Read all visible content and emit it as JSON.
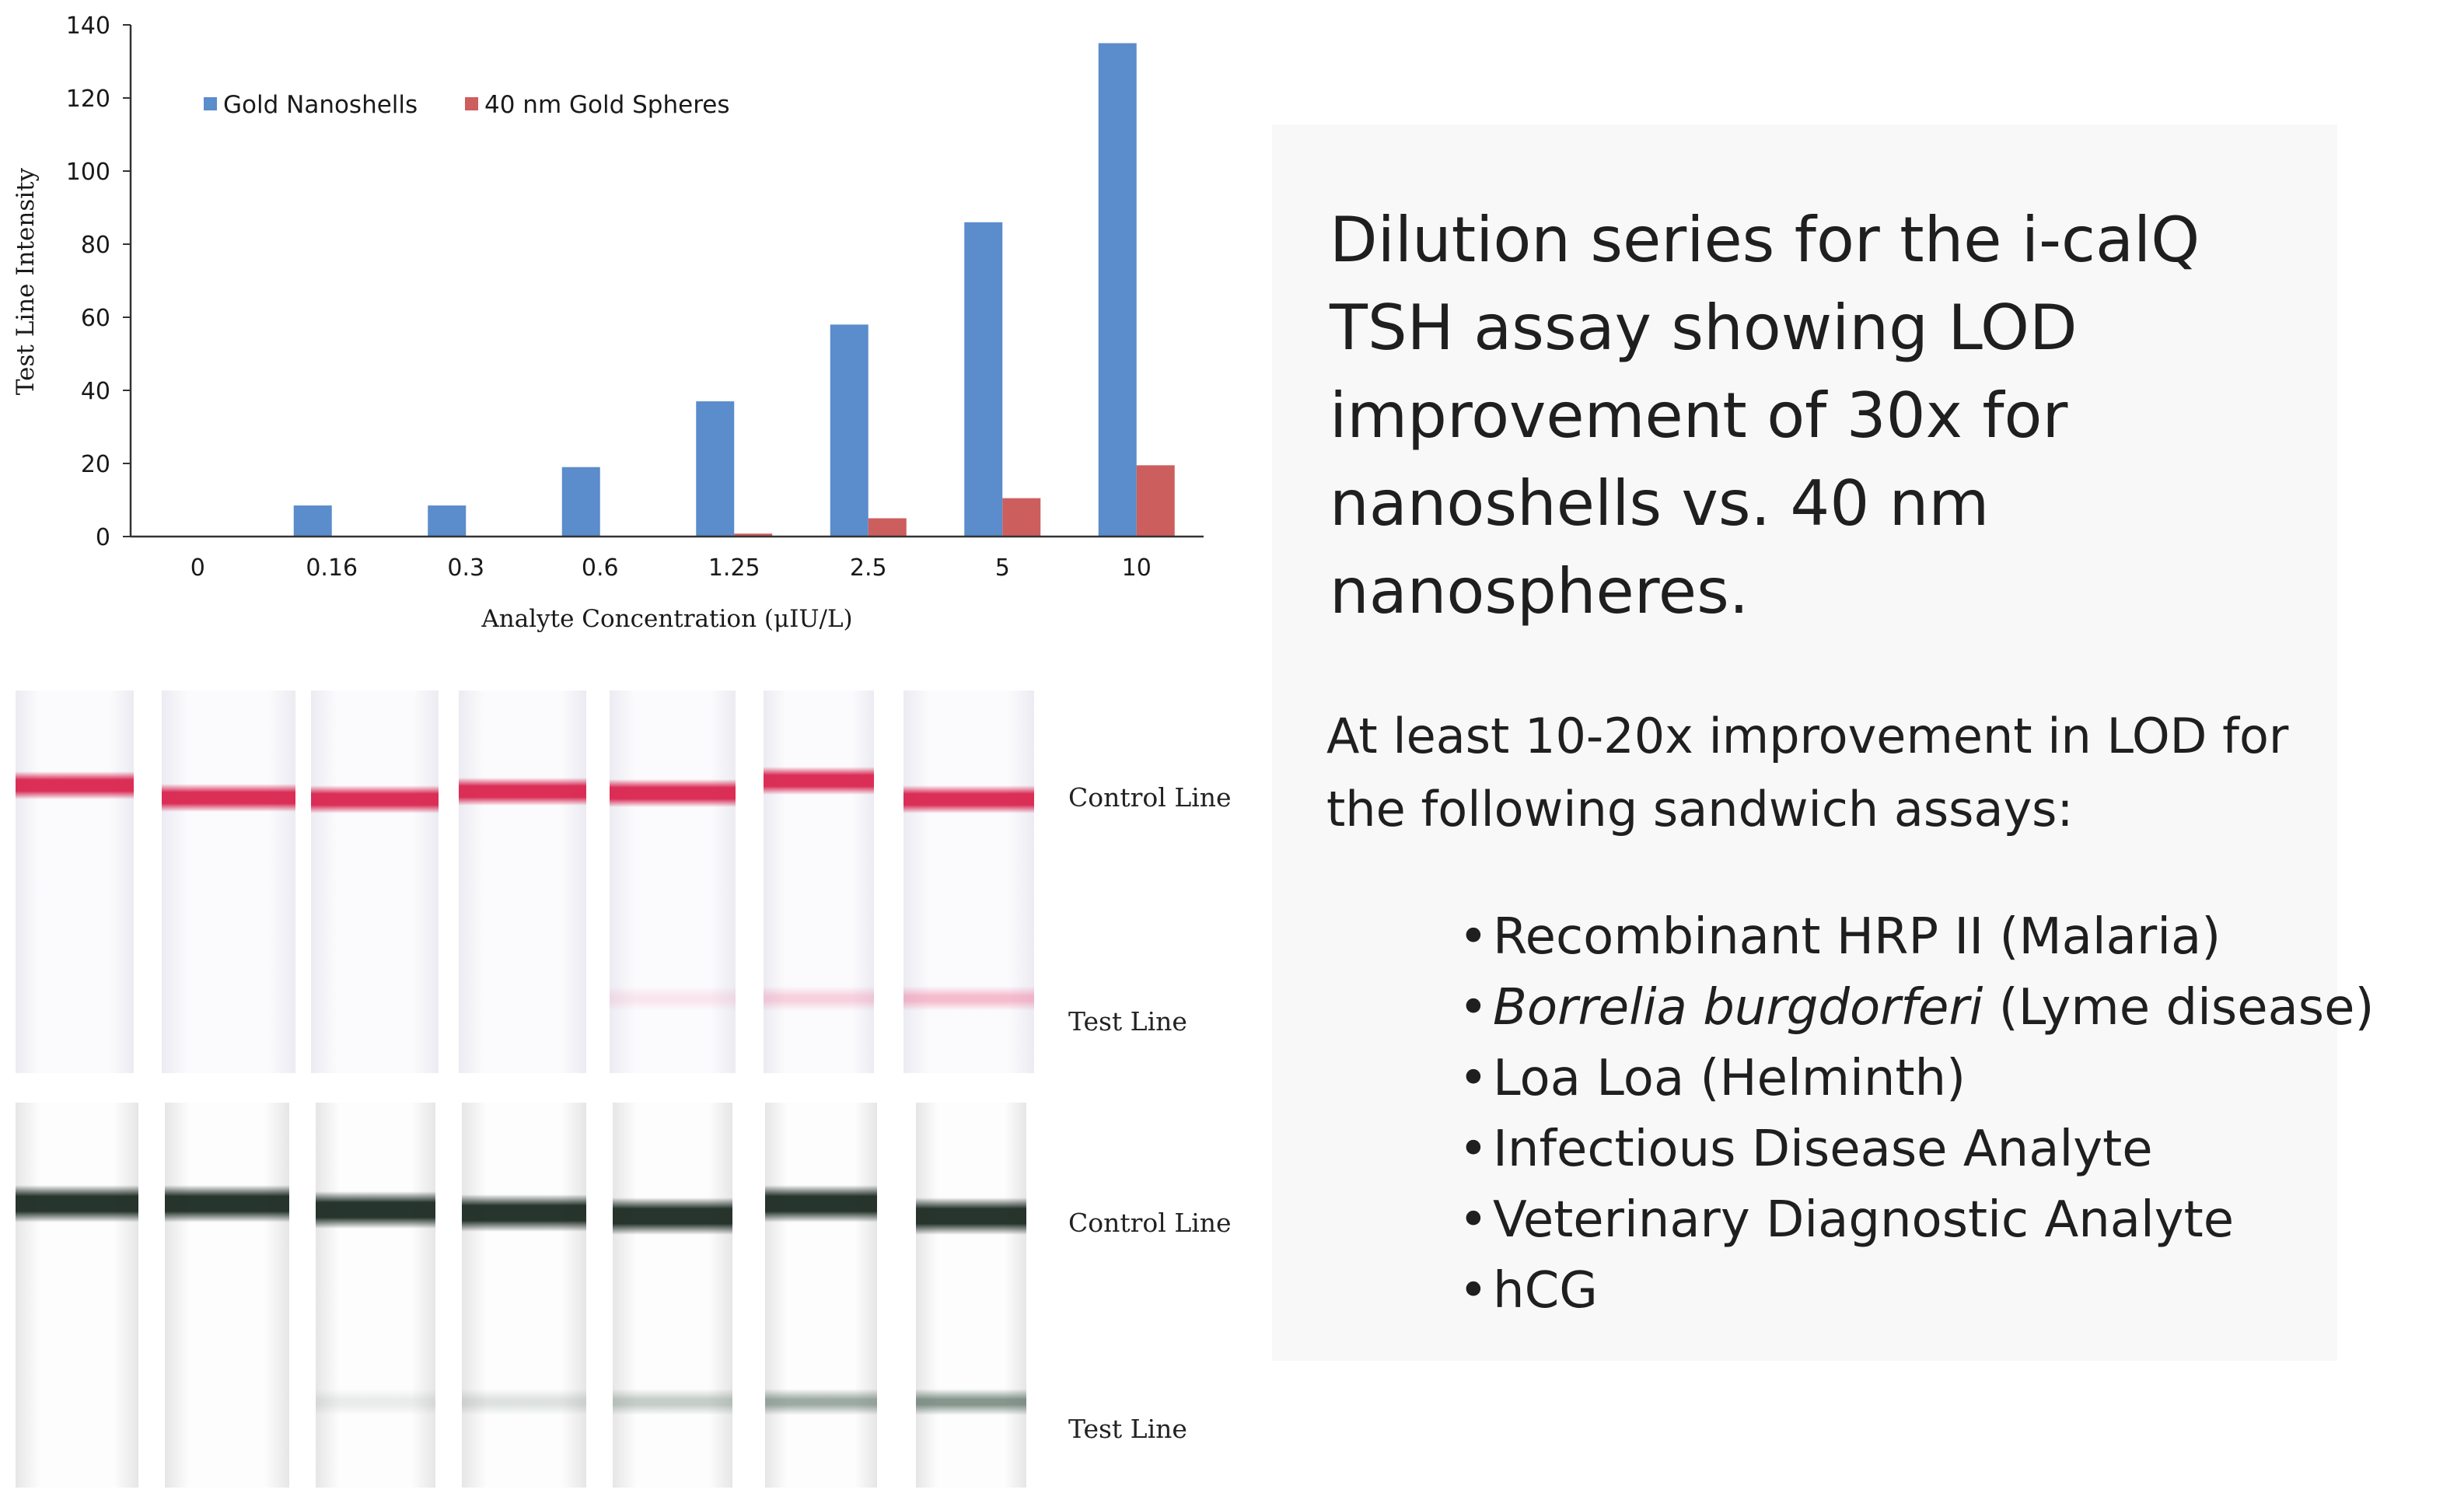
{
  "chart_data": {
    "type": "bar",
    "categories": [
      "0",
      "0.16",
      "0.3",
      "0.6",
      "1.25",
      "2.5",
      "5",
      "10"
    ],
    "series": [
      {
        "name": "Gold Nanoshells",
        "values": [
          0,
          8.5,
          8.5,
          19,
          37,
          58,
          86,
          135
        ],
        "color": "#5b8ccb"
      },
      {
        "name": "40 nm Gold Spheres",
        "values": [
          0,
          0,
          0,
          0,
          0.8,
          5,
          10.5,
          19.5
        ],
        "color": "#cd5e5e"
      }
    ],
    "title": "",
    "xlabel": "Analyte Concentration (μIU/L)",
    "ylabel": "Test Line Intensity",
    "ylim": [
      0,
      140
    ],
    "yticks": [
      0,
      20,
      40,
      60,
      80,
      100,
      120,
      140
    ],
    "grid": false,
    "legend": "top-left"
  },
  "strips": {
    "red_row": {
      "control_label": "Control Line",
      "test_label": "Test Line",
      "control_color": "#d9244e",
      "test_color": "#ee6f94",
      "test_intensity": [
        0,
        0,
        0,
        0,
        0.15,
        0.3,
        0.45
      ]
    },
    "dark_row": {
      "control_label": "Control Line",
      "test_label": "Test Line",
      "control_color": "#1b2a22",
      "test_color": "#5d7367",
      "test_intensity": [
        0,
        0,
        0.12,
        0.2,
        0.35,
        0.6,
        0.75
      ]
    }
  },
  "text_panel": {
    "caption": "Dilution series for the i-calQ TSH assay showing LOD improvement of 30x for nanoshells vs. 40 nm nanospheres.",
    "subheading": "At least 10-20x improvement in LOD for the following sandwich assays:",
    "bullets": {
      "item1": "Recombinant HRP II (Malaria)",
      "item2_italic": "Borrelia burgdorferi",
      "item2_rest": " (Lyme disease)",
      "item3": "Loa Loa (Helminth)",
      "item4": "Infectious Disease Analyte",
      "item5": "Veterinary Diagnostic Analyte",
      "item6": "hCG"
    }
  }
}
